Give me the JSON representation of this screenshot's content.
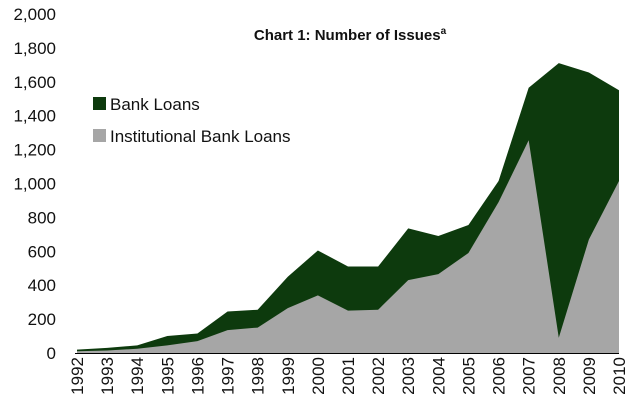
{
  "chart_data": {
    "type": "area",
    "title": "Chart 1: Number of Issues",
    "title_superscript": "a",
    "xlabel": "",
    "ylabel": "",
    "x": [
      "1992",
      "1993",
      "1994",
      "1995",
      "1996",
      "1997",
      "1998",
      "1999",
      "2000",
      "2001",
      "2002",
      "2003",
      "2004",
      "2005",
      "2006",
      "2007",
      "2008",
      "2009",
      "2010"
    ],
    "ylim": [
      0,
      2000
    ],
    "yticks": [
      0,
      200,
      400,
      600,
      800,
      1000,
      1200,
      1400,
      1600,
      1800,
      2000
    ],
    "ytick_labels": [
      "0",
      "200",
      "400",
      "600",
      "800",
      "1,000",
      "1,200",
      "1,400",
      "1,600",
      "1,800",
      "2,000"
    ],
    "grid": false,
    "legend_position": "upper-left",
    "series": [
      {
        "name": "Bank Loans",
        "color": "#0d3a0d",
        "values": [
          20,
          30,
          45,
          100,
          115,
          245,
          255,
          450,
          605,
          510,
          510,
          735,
          690,
          755,
          1015,
          1565,
          1710,
          1655,
          1550
        ]
      },
      {
        "name": "Institutional Bank Loans",
        "color": "#a6a6a6",
        "values": [
          10,
          15,
          25,
          45,
          70,
          135,
          150,
          265,
          340,
          250,
          255,
          430,
          465,
          590,
          890,
          1255,
          90,
          670,
          1015
        ]
      }
    ]
  }
}
